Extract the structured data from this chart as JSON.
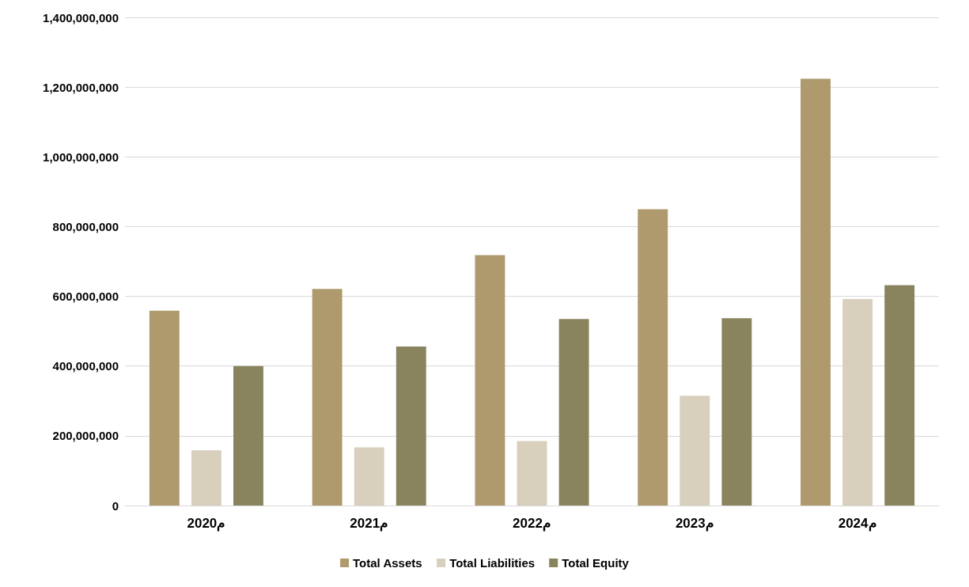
{
  "chart_data": {
    "type": "bar",
    "categories": [
      "2020م",
      "2021م",
      "2022م",
      "2023م",
      "2024م"
    ],
    "series": [
      {
        "name": "Total Assets",
        "color": "#ae9a6d",
        "values": [
          559000000,
          621000000,
          718000000,
          850000000,
          1224000000
        ]
      },
      {
        "name": "Total Liabilities",
        "color": "#d9cfbd",
        "values": [
          158000000,
          167000000,
          185000000,
          315000000,
          592000000
        ]
      },
      {
        "name": "Total Equity",
        "color": "#8a845e",
        "values": [
          400000000,
          456000000,
          535000000,
          537000000,
          632000000
        ]
      }
    ],
    "ylim": [
      0,
      1400000000
    ],
    "yticks": [
      0,
      {
        "value": 200000000,
        "label": "200,000,000"
      },
      {
        "value": 400000000,
        "label": "400,000,000"
      },
      {
        "value": 600000000,
        "label": "600,000,000"
      },
      {
        "value": 800000000,
        "label": "800,000,000"
      },
      {
        "value": 1000000000,
        "label": "1,000,000,000"
      },
      {
        "value": 1200000000,
        "label": "1,200,000,000"
      },
      {
        "value": 1400000000,
        "label": "1,400,000,000"
      }
    ],
    "grid": "y",
    "legend": "bottom"
  }
}
